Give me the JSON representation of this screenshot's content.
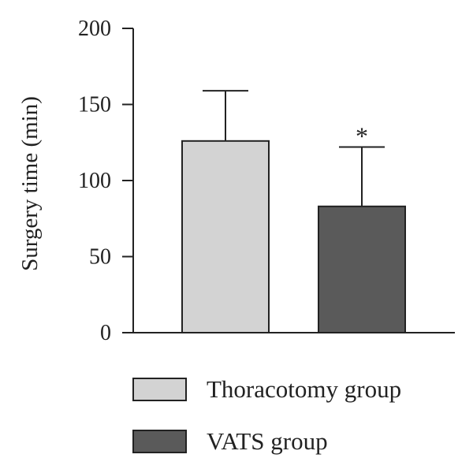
{
  "chart_data": {
    "type": "bar",
    "categories": [
      "Thoracotomy group",
      "VATS group"
    ],
    "values": [
      126,
      83
    ],
    "error_upper": [
      159,
      122
    ],
    "colors": [
      "#d3d3d3",
      "#5a5a5a"
    ],
    "ylabel": "Surgery time (min)",
    "ylim": [
      0,
      200
    ],
    "yticks": [
      "0",
      "50",
      "100",
      "150",
      "200"
    ],
    "annotations": [
      {
        "category": "VATS group",
        "text": "*"
      }
    ],
    "legend": {
      "placement": "bottom",
      "entries": [
        {
          "label": "Thoracotomy group",
          "color": "#d3d3d3"
        },
        {
          "label": "VATS group",
          "color": "#5a5a5a"
        }
      ]
    },
    "grid": false
  }
}
